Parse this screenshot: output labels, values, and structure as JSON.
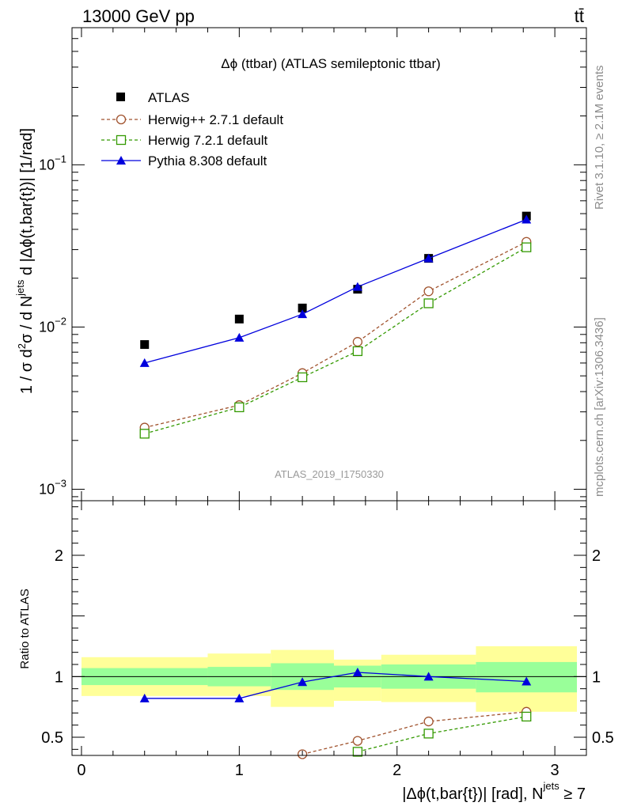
{
  "header": {
    "left": "13000 GeV pp",
    "right": "tt̄"
  },
  "side_labels": {
    "rivet": "Rivet 3.1.10, ≥ 2.1M events",
    "mcplots": "mcplots.cern.ch [arXiv:1306.3436]"
  },
  "chart_data": [
    {
      "type": "scatter",
      "panel": "main",
      "title": "Δϕ (ttbar) (ATLAS semileptonic ttbar)",
      "ylabel": "1 / σ d²σ / d N^jets d |Δϕ(t,bar{t})| [1/rad]",
      "ylabel_parts": {
        "p1": "1 / σ d",
        "sup1": "2",
        "p2": "σ  /  d N",
        "sup2": "jets",
        "p3": " d |Δϕ(t,bar{t})| [1/rad]"
      },
      "y_scale": "log",
      "ylim": [
        0.00085,
        0.7
      ],
      "xlim": [
        -0.06,
        3.2
      ],
      "y_tick_labels": [
        {
          "value": 0.1,
          "base": "10",
          "exp": "−1"
        },
        {
          "value": 0.01,
          "base": "10",
          "exp": "−2"
        },
        {
          "value": 0.001,
          "base": "10",
          "exp": "−3"
        }
      ],
      "watermark": "ATLAS_2019_I1750330",
      "legend_position": "top-left",
      "series": [
        {
          "name": "ATLAS",
          "color": "#000000",
          "marker": "square-filled",
          "line": "none",
          "x": [
            0.4,
            1.0,
            1.4,
            1.75,
            2.2,
            2.82
          ],
          "y": [
            0.0078,
            0.0112,
            0.0131,
            0.0171,
            0.0265,
            0.0483
          ]
        },
        {
          "name": "Herwig++ 2.7.1 default",
          "color": "#a0522d",
          "marker": "circle-open",
          "line": "dashed",
          "x": [
            0.4,
            1.0,
            1.4,
            1.75,
            2.2,
            2.82
          ],
          "y": [
            0.0024,
            0.0033,
            0.0052,
            0.0081,
            0.0166,
            0.0335
          ]
        },
        {
          "name": "Herwig 7.2.1 default",
          "color": "#339900",
          "marker": "square-open",
          "line": "dashed",
          "x": [
            0.4,
            1.0,
            1.4,
            1.75,
            2.2,
            2.82
          ],
          "y": [
            0.0022,
            0.0032,
            0.0049,
            0.0071,
            0.014,
            0.031
          ]
        },
        {
          "name": "Pythia 8.308 default",
          "color": "#0000dd",
          "marker": "triangle-filled",
          "line": "solid",
          "x": [
            0.4,
            1.0,
            1.4,
            1.75,
            2.2,
            2.82
          ],
          "y": [
            0.006,
            0.0086,
            0.012,
            0.0177,
            0.0265,
            0.046
          ]
        }
      ]
    },
    {
      "type": "scatter",
      "panel": "ratio",
      "ylabel": "Ratio to ATLAS",
      "xlabel": "|Δϕ(t,bar{t})| [rad], N^jets ≥ 7",
      "xlabel_parts": {
        "p1": "|Δϕ(t,bar{t})| [rad], N",
        "sup": "jets",
        "p2": " ≥ 7"
      },
      "ylim": [
        0.35,
        2.45
      ],
      "xlim": [
        -0.06,
        3.2
      ],
      "x_ticks": [
        0,
        1,
        2,
        3
      ],
      "y_ticks": [
        0.5,
        1,
        2
      ],
      "reference_line": 1,
      "bands": [
        {
          "x0": 0.0,
          "x1": 0.8,
          "inner": [
            0.93,
            1.07
          ],
          "outer": [
            0.84,
            1.16
          ]
        },
        {
          "x0": 0.8,
          "x1": 1.2,
          "inner": [
            0.92,
            1.08
          ],
          "outer": [
            0.84,
            1.19
          ]
        },
        {
          "x0": 1.2,
          "x1": 1.6,
          "inner": [
            0.89,
            1.11
          ],
          "outer": [
            0.75,
            1.22
          ]
        },
        {
          "x0": 1.6,
          "x1": 1.9,
          "inner": [
            0.91,
            1.09
          ],
          "outer": [
            0.8,
            1.14
          ]
        },
        {
          "x0": 1.9,
          "x1": 2.5,
          "inner": [
            0.9,
            1.1
          ],
          "outer": [
            0.79,
            1.18
          ]
        },
        {
          "x0": 2.5,
          "x1": 3.14,
          "inner": [
            0.87,
            1.12
          ],
          "outer": [
            0.71,
            1.25
          ]
        }
      ],
      "series": [
        {
          "name": "Herwig++ 2.7.1 default",
          "color": "#a0522d",
          "marker": "circle-open",
          "line": "dashed",
          "x": [
            1.4,
            1.75,
            2.2,
            2.82
          ],
          "y": [
            0.36,
            0.47,
            0.63,
            0.71
          ]
        },
        {
          "name": "Herwig 7.2.1 default",
          "color": "#339900",
          "marker": "square-open",
          "line": "dashed",
          "x": [
            1.75,
            2.2,
            2.82
          ],
          "y": [
            0.38,
            0.53,
            0.67
          ]
        },
        {
          "name": "Pythia 8.308 default",
          "color": "#0000dd",
          "marker": "triangle-filled",
          "line": "solid",
          "x": [
            0.4,
            1.0,
            1.4,
            1.75,
            2.2,
            2.82
          ],
          "y": [
            0.82,
            0.82,
            0.955,
            1.035,
            1.0,
            0.96
          ]
        }
      ]
    }
  ]
}
